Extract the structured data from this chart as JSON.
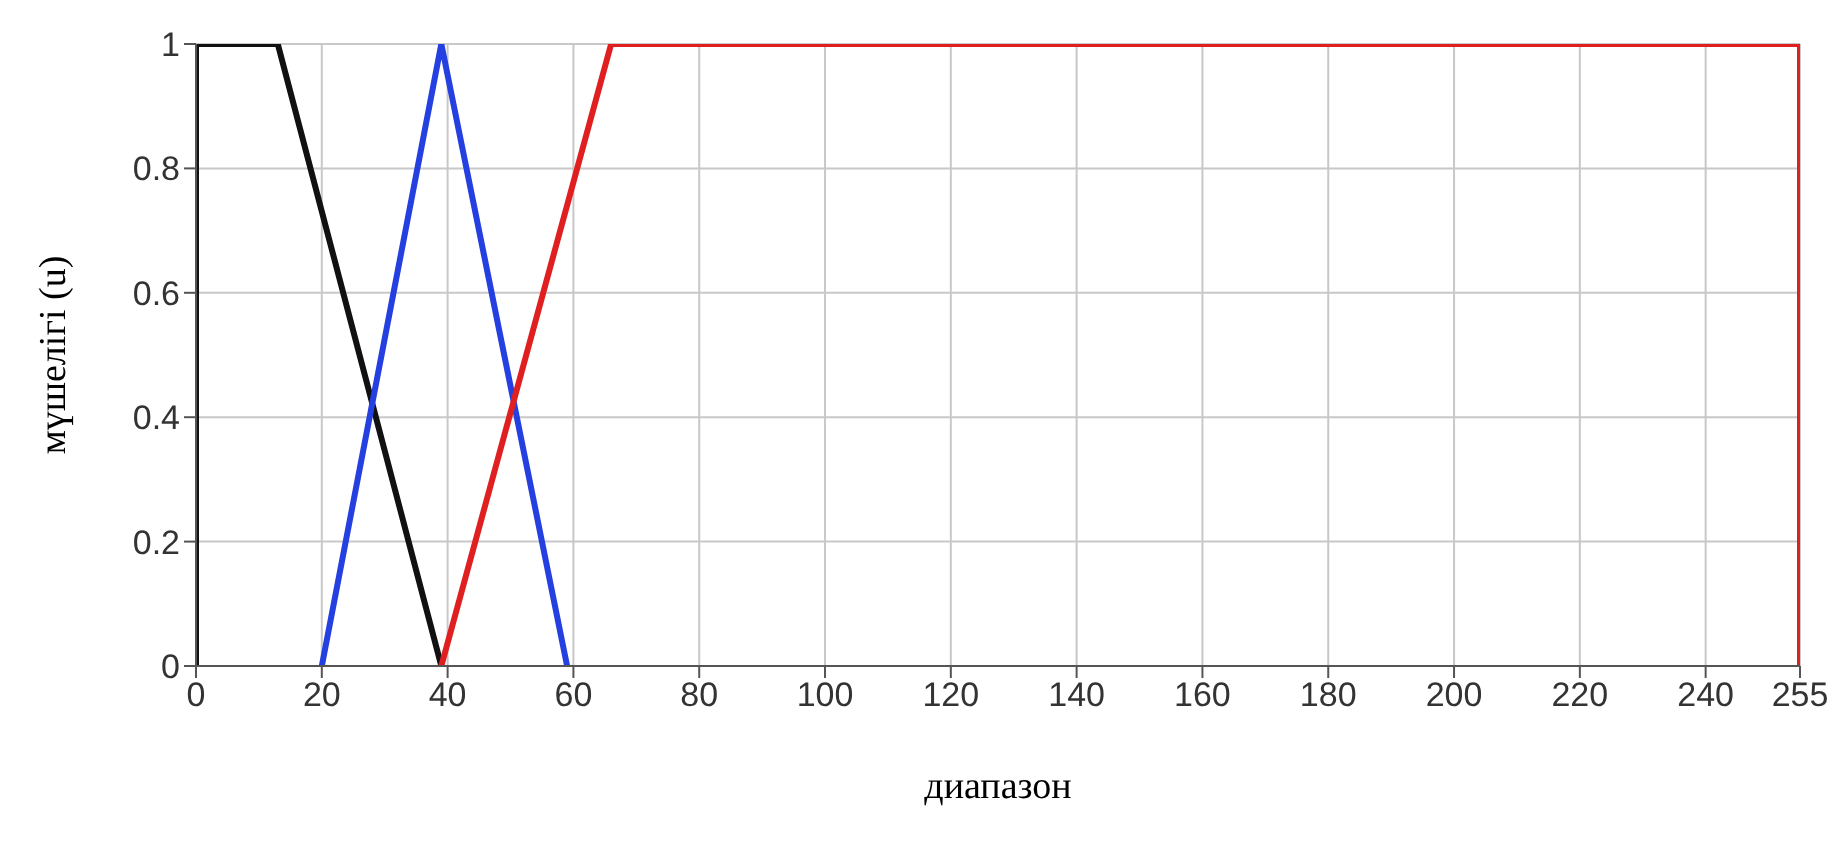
{
  "chart_data": {
    "type": "line",
    "xlabel": "диапазон",
    "ylabel": "мүшелігі (u)",
    "xlim": [
      0,
      255
    ],
    "xticks": [
      0,
      20,
      40,
      60,
      80,
      100,
      120,
      140,
      160,
      180,
      200,
      220,
      240,
      255
    ],
    "ylim": [
      0,
      1
    ],
    "yticks": [
      0,
      0.2,
      0.4,
      0.6,
      0.8,
      1
    ],
    "grid": true,
    "marker": "none",
    "line_style": "solid",
    "series": [
      {
        "color": "#111111",
        "x": [
          0,
          0,
          13,
          39
        ],
        "values": [
          0,
          1,
          1,
          0
        ]
      },
      {
        "color": "#2440e0",
        "x": [
          20,
          39,
          59
        ],
        "values": [
          0,
          1,
          0
        ]
      },
      {
        "color": "#e02020",
        "x": [
          39,
          66,
          255,
          255
        ],
        "values": [
          0,
          1,
          1,
          0
        ]
      }
    ]
  }
}
